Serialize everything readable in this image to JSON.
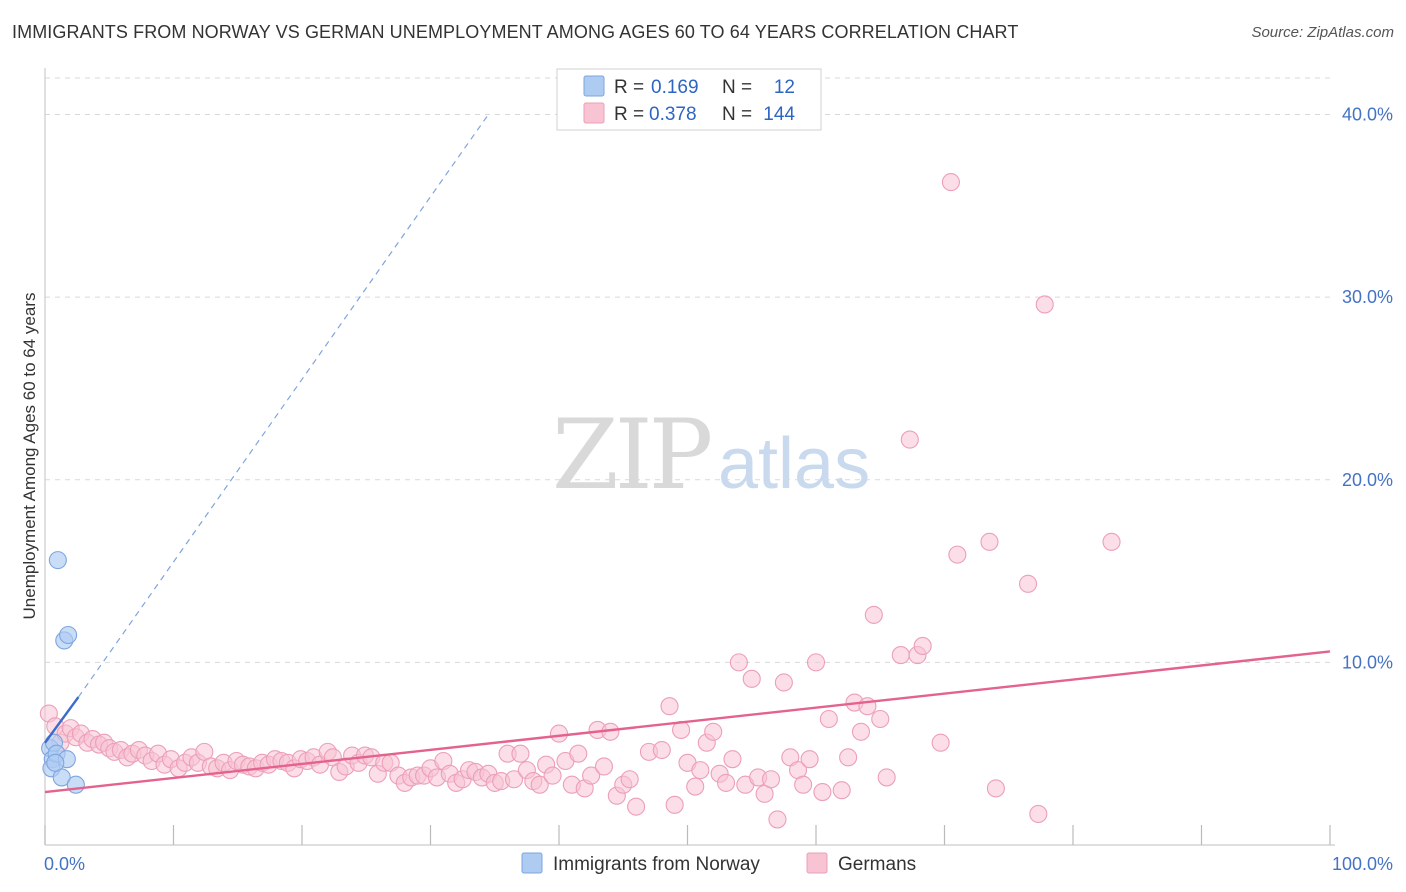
{
  "title": "IMMIGRANTS FROM NORWAY VS GERMAN UNEMPLOYMENT AMONG AGES 60 TO 64 YEARS CORRELATION CHART",
  "source": "Source: ZipAtlas.com",
  "watermark": {
    "zip": "ZIP",
    "atlas": "atlas"
  },
  "colors": {
    "norway_fill": "#aecbf2",
    "norway_stroke": "#7ea6df",
    "norway_line": "#3a6cc8",
    "german_fill": "#f8c3d3",
    "german_stroke": "#ec9fb8",
    "german_line": "#e4628e",
    "grid": "#d9d9d9",
    "tick_text": "#4472c4"
  },
  "stats_legend": [
    {
      "r_label": "R =",
      "r_value": "0.169",
      "n_label": "N =",
      "n_value": "12"
    },
    {
      "r_label": "R =",
      "r_value": "0.378",
      "n_label": "N =",
      "n_value": "144"
    }
  ],
  "chart_data": {
    "type": "scatter",
    "title": "IMMIGRANTS FROM NORWAY VS GERMAN UNEMPLOYMENT AMONG AGES 60 TO 64 YEARS CORRELATION CHART",
    "xlabel": "",
    "ylabel": "Unemployment Among Ages 60 to 64 years",
    "xlim": [
      0,
      100
    ],
    "ylim": [
      0,
      42
    ],
    "x_tick_labels": [
      "0.0%",
      "100.0%"
    ],
    "y_ticks": [
      10,
      20,
      30,
      40
    ],
    "y_tick_labels": [
      "10.0%",
      "20.0%",
      "30.0%",
      "40.0%"
    ],
    "grid": true,
    "legend_position": "bottom-center",
    "series": [
      {
        "name": "Immigrants from Norway",
        "r": 0.169,
        "n": 12,
        "trend_solid": [
          [
            0,
            5.6
          ],
          [
            2.6,
            8.1
          ]
        ],
        "trend_dashed": [
          [
            2.6,
            8.1
          ],
          [
            34.5,
            40.0
          ]
        ],
        "points": [
          [
            0.4,
            5.3
          ],
          [
            0.6,
            4.7
          ],
          [
            0.5,
            4.2
          ],
          [
            0.7,
            5.6
          ],
          [
            0.9,
            5.0
          ],
          [
            1.0,
            15.6
          ],
          [
            1.5,
            11.2
          ],
          [
            1.8,
            11.5
          ],
          [
            1.3,
            3.7
          ],
          [
            1.7,
            4.7
          ],
          [
            2.4,
            3.3
          ],
          [
            0.8,
            4.5
          ]
        ]
      },
      {
        "name": "Germans",
        "r": 0.378,
        "n": 144,
        "trend": [
          [
            0,
            2.9
          ],
          [
            100,
            10.6
          ]
        ],
        "points": [
          [
            0.3,
            7.2
          ],
          [
            0.8,
            6.5
          ],
          [
            1.2,
            5.6
          ],
          [
            1.6,
            6.1
          ],
          [
            2.0,
            6.4
          ],
          [
            2.4,
            5.9
          ],
          [
            2.8,
            6.1
          ],
          [
            3.3,
            5.6
          ],
          [
            3.7,
            5.8
          ],
          [
            4.2,
            5.5
          ],
          [
            4.6,
            5.6
          ],
          [
            5.0,
            5.3
          ],
          [
            5.4,
            5.1
          ],
          [
            5.9,
            5.2
          ],
          [
            6.4,
            4.8
          ],
          [
            6.8,
            5.0
          ],
          [
            7.3,
            5.2
          ],
          [
            7.8,
            4.9
          ],
          [
            8.3,
            4.6
          ],
          [
            8.8,
            5.0
          ],
          [
            9.3,
            4.4
          ],
          [
            9.8,
            4.7
          ],
          [
            10.4,
            4.2
          ],
          [
            10.9,
            4.5
          ],
          [
            11.4,
            4.8
          ],
          [
            11.9,
            4.5
          ],
          [
            12.4,
            5.1
          ],
          [
            12.9,
            4.3
          ],
          [
            13.4,
            4.2
          ],
          [
            13.9,
            4.5
          ],
          [
            14.4,
            4.1
          ],
          [
            14.9,
            4.6
          ],
          [
            15.4,
            4.4
          ],
          [
            15.9,
            4.3
          ],
          [
            16.4,
            4.2
          ],
          [
            16.9,
            4.5
          ],
          [
            17.4,
            4.4
          ],
          [
            17.9,
            4.7
          ],
          [
            18.4,
            4.6
          ],
          [
            18.9,
            4.5
          ],
          [
            19.4,
            4.2
          ],
          [
            19.9,
            4.7
          ],
          [
            20.4,
            4.6
          ],
          [
            20.9,
            4.8
          ],
          [
            21.4,
            4.4
          ],
          [
            22.0,
            5.1
          ],
          [
            22.4,
            4.8
          ],
          [
            22.9,
            4.0
          ],
          [
            23.4,
            4.3
          ],
          [
            23.9,
            4.9
          ],
          [
            24.4,
            4.5
          ],
          [
            24.9,
            4.9
          ],
          [
            25.4,
            4.8
          ],
          [
            25.9,
            3.9
          ],
          [
            26.4,
            4.5
          ],
          [
            26.9,
            4.5
          ],
          [
            27.5,
            3.8
          ],
          [
            28.0,
            3.4
          ],
          [
            28.5,
            3.7
          ],
          [
            29.0,
            3.8
          ],
          [
            29.5,
            3.8
          ],
          [
            30.0,
            4.2
          ],
          [
            30.5,
            3.7
          ],
          [
            31.0,
            4.6
          ],
          [
            31.5,
            3.9
          ],
          [
            32.0,
            3.4
          ],
          [
            32.5,
            3.6
          ],
          [
            33.0,
            4.1
          ],
          [
            33.5,
            4.0
          ],
          [
            34.0,
            3.7
          ],
          [
            34.5,
            3.9
          ],
          [
            35.0,
            3.4
          ],
          [
            35.5,
            3.5
          ],
          [
            36.0,
            5.0
          ],
          [
            36.5,
            3.6
          ],
          [
            37.0,
            5.0
          ],
          [
            37.5,
            4.1
          ],
          [
            38.0,
            3.5
          ],
          [
            38.5,
            3.3
          ],
          [
            39.0,
            4.4
          ],
          [
            39.5,
            3.8
          ],
          [
            40.0,
            6.1
          ],
          [
            40.5,
            4.6
          ],
          [
            41.0,
            3.3
          ],
          [
            41.5,
            5.0
          ],
          [
            42.0,
            3.1
          ],
          [
            42.5,
            3.8
          ],
          [
            43.0,
            6.3
          ],
          [
            43.5,
            4.3
          ],
          [
            44.0,
            6.2
          ],
          [
            44.5,
            2.7
          ],
          [
            45.0,
            3.3
          ],
          [
            45.5,
            3.6
          ],
          [
            46.0,
            2.1
          ],
          [
            47.0,
            5.1
          ],
          [
            48.0,
            5.2
          ],
          [
            48.6,
            7.6
          ],
          [
            49.0,
            2.2
          ],
          [
            49.5,
            6.3
          ],
          [
            50.0,
            4.5
          ],
          [
            50.6,
            3.2
          ],
          [
            51.0,
            4.1
          ],
          [
            51.5,
            5.6
          ],
          [
            52.0,
            6.2
          ],
          [
            52.5,
            3.9
          ],
          [
            53.0,
            3.4
          ],
          [
            53.5,
            4.7
          ],
          [
            54.0,
            10.0
          ],
          [
            54.5,
            3.3
          ],
          [
            55.0,
            9.1
          ],
          [
            55.5,
            3.7
          ],
          [
            56.0,
            2.8
          ],
          [
            56.5,
            3.6
          ],
          [
            57.0,
            1.4
          ],
          [
            57.5,
            8.9
          ],
          [
            58.0,
            4.8
          ],
          [
            58.6,
            4.1
          ],
          [
            59.0,
            3.3
          ],
          [
            59.5,
            4.7
          ],
          [
            60.0,
            10.0
          ],
          [
            60.5,
            2.9
          ],
          [
            61.0,
            6.9
          ],
          [
            62.0,
            3.0
          ],
          [
            62.5,
            4.8
          ],
          [
            63.0,
            7.8
          ],
          [
            63.5,
            6.2
          ],
          [
            64.0,
            7.6
          ],
          [
            64.5,
            12.6
          ],
          [
            65.0,
            6.9
          ],
          [
            65.5,
            3.7
          ],
          [
            66.6,
            10.4
          ],
          [
            67.3,
            22.2
          ],
          [
            67.9,
            10.4
          ],
          [
            68.3,
            10.9
          ],
          [
            69.7,
            5.6
          ],
          [
            70.5,
            36.3
          ],
          [
            71.0,
            15.9
          ],
          [
            73.5,
            16.6
          ],
          [
            74.0,
            3.1
          ],
          [
            76.5,
            14.3
          ],
          [
            77.3,
            1.7
          ],
          [
            77.8,
            29.6
          ],
          [
            83.0,
            16.6
          ]
        ]
      }
    ]
  },
  "legend": [
    {
      "label": "Immigrants from Norway"
    },
    {
      "label": "Germans"
    }
  ]
}
